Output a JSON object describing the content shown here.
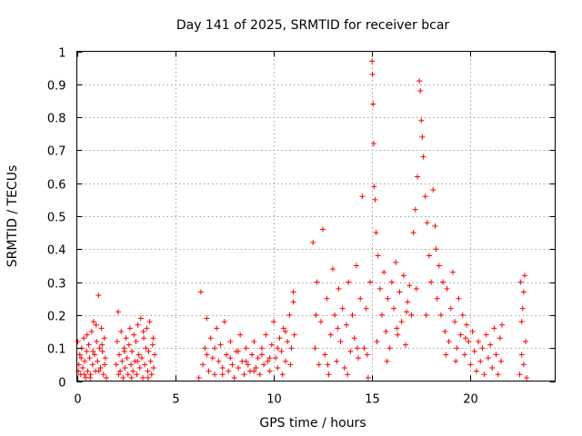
{
  "chart_data": {
    "type": "scatter",
    "title": "Day 141 of 2025, SRMTID for receiver bcar",
    "xlabel": "GPS time / hours",
    "ylabel": "SRMTID / TECUs",
    "xlim": [
      0,
      24.3
    ],
    "ylim": [
      0,
      1
    ],
    "xticks": [
      0,
      5,
      10,
      15,
      20
    ],
    "xtick_labels": [
      "0",
      "5",
      "10",
      "15",
      "20"
    ],
    "yticks": [
      0,
      0.1,
      0.2,
      0.3,
      0.4,
      0.5,
      0.6,
      0.7,
      0.8,
      0.9,
      1
    ],
    "ytick_labels": [
      "0",
      "0.1",
      "0.2",
      "0.3",
      "0.4",
      "0.5",
      "0.6",
      "0.7",
      "0.8",
      "0.9",
      "1"
    ],
    "grid": true,
    "marker": "+",
    "series_color": "#ff0000",
    "series": [
      {
        "name": "SRMTID",
        "points": [
          [
            0.05,
            0.12
          ],
          [
            0.1,
            0.05
          ],
          [
            0.15,
            0.08
          ],
          [
            0.2,
            0.02
          ],
          [
            0.25,
            0.1
          ],
          [
            0.3,
            0.04
          ],
          [
            0.35,
            0.13
          ],
          [
            0.4,
            0.06
          ],
          [
            0.45,
            0.01
          ],
          [
            0.5,
            0.09
          ],
          [
            0.55,
            0.03
          ],
          [
            0.6,
            0.11
          ],
          [
            0.65,
            0.07
          ],
          [
            0.7,
            0.02
          ],
          [
            0.75,
            0.15
          ],
          [
            0.8,
            0.05
          ],
          [
            0.85,
            0.18
          ],
          [
            0.9,
            0.08
          ],
          [
            0.95,
            0.03
          ],
          [
            1.0,
            0.12
          ],
          [
            1.05,
            0.06
          ],
          [
            1.1,
            0.26
          ],
          [
            1.15,
            0.1
          ],
          [
            1.2,
            0.04
          ],
          [
            1.25,
            0.16
          ],
          [
            1.3,
            0.09
          ],
          [
            1.35,
            0.02
          ],
          [
            1.4,
            0.13
          ],
          [
            1.45,
            0.07
          ],
          [
            1.5,
            0.01
          ],
          [
            0.08,
            0.03
          ],
          [
            0.22,
            0.07
          ],
          [
            0.38,
            0.02
          ],
          [
            0.52,
            0.14
          ],
          [
            0.68,
            0.01
          ],
          [
            0.82,
            0.09
          ],
          [
            0.98,
            0.17
          ],
          [
            1.12,
            0.03
          ],
          [
            1.28,
            0.11
          ],
          [
            1.42,
            0.05
          ],
          [
            2.0,
            0.05
          ],
          [
            2.05,
            0.12
          ],
          [
            2.1,
            0.21
          ],
          [
            2.15,
            0.08
          ],
          [
            2.2,
            0.03
          ],
          [
            2.25,
            0.15
          ],
          [
            2.3,
            0.06
          ],
          [
            2.35,
            0.01
          ],
          [
            2.4,
            0.1
          ],
          [
            2.45,
            0.04
          ],
          [
            2.5,
            0.13
          ],
          [
            2.55,
            0.07
          ],
          [
            2.6,
            0.02
          ],
          [
            2.65,
            0.11
          ],
          [
            2.7,
            0.16
          ],
          [
            2.75,
            0.05
          ],
          [
            2.8,
            0.09
          ],
          [
            2.85,
            0.03
          ],
          [
            2.9,
            0.14
          ],
          [
            2.95,
            0.06
          ],
          [
            3.0,
            0.12
          ],
          [
            3.05,
            0.02
          ],
          [
            3.1,
            0.17
          ],
          [
            3.15,
            0.08
          ],
          [
            3.2,
            0.04
          ],
          [
            3.25,
            0.19
          ],
          [
            3.3,
            0.07
          ],
          [
            3.35,
            0.01
          ],
          [
            3.4,
            0.13
          ],
          [
            3.45,
            0.05
          ],
          [
            3.5,
            0.1
          ],
          [
            3.55,
            0.16
          ],
          [
            3.6,
            0.03
          ],
          [
            3.65,
            0.09
          ],
          [
            3.7,
            0.18
          ],
          [
            3.75,
            0.06
          ],
          [
            3.8,
            0.02
          ],
          [
            3.85,
            0.11
          ],
          [
            3.9,
            0.04
          ],
          [
            3.95,
            0.08
          ],
          [
            2.12,
            0.02
          ],
          [
            2.42,
            0.09
          ],
          [
            2.78,
            0.01
          ],
          [
            3.08,
            0.06
          ],
          [
            3.38,
            0.15
          ],
          [
            3.62,
            0.01
          ],
          [
            3.88,
            0.13
          ],
          [
            6.2,
            0.01
          ],
          [
            6.3,
            0.27
          ],
          [
            6.4,
            0.05
          ],
          [
            6.5,
            0.1
          ],
          [
            6.6,
            0.19
          ],
          [
            6.7,
            0.03
          ],
          [
            6.8,
            0.13
          ],
          [
            6.9,
            0.07
          ],
          [
            7.0,
            0.02
          ],
          [
            7.1,
            0.16
          ],
          [
            7.2,
            0.06
          ],
          [
            7.3,
            0.11
          ],
          [
            7.4,
            0.04
          ],
          [
            7.5,
            0.18
          ],
          [
            7.6,
            0.08
          ],
          [
            7.7,
            0.03
          ],
          [
            7.8,
            0.12
          ],
          [
            7.9,
            0.05
          ],
          [
            8.0,
            0.01
          ],
          [
            8.1,
            0.09
          ],
          [
            8.2,
            0.04
          ],
          [
            8.3,
            0.14
          ],
          [
            8.4,
            0.06
          ],
          [
            8.5,
            0.02
          ],
          [
            8.6,
            0.1
          ],
          [
            8.7,
            0.05
          ],
          [
            8.8,
            0.03
          ],
          [
            8.9,
            0.08
          ],
          [
            9.0,
            0.12
          ],
          [
            9.1,
            0.04
          ],
          [
            9.2,
            0.07
          ],
          [
            9.3,
            0.02
          ],
          [
            9.4,
            0.1
          ],
          [
            9.5,
            0.05
          ],
          [
            9.6,
            0.14
          ],
          [
            9.7,
            0.06
          ],
          [
            9.8,
            0.03
          ],
          [
            9.9,
            0.11
          ],
          [
            10.0,
            0.18
          ],
          [
            10.1,
            0.07
          ],
          [
            10.2,
            0.04
          ],
          [
            10.3,
            0.13
          ],
          [
            10.4,
            0.09
          ],
          [
            10.5,
            0.16
          ],
          [
            10.6,
            0.06
          ],
          [
            10.7,
            0.12
          ],
          [
            10.8,
            0.2
          ],
          [
            10.9,
            0.1
          ],
          [
            11.0,
            0.24
          ],
          [
            11.05,
            0.14
          ],
          [
            6.6,
            0.08
          ],
          [
            7.0,
            0.1
          ],
          [
            7.4,
            0.02
          ],
          [
            7.8,
            0.07
          ],
          [
            8.2,
            0.09
          ],
          [
            8.6,
            0.06
          ],
          [
            9.0,
            0.03
          ],
          [
            9.4,
            0.08
          ],
          [
            9.8,
            0.07
          ],
          [
            10.2,
            0.1
          ],
          [
            10.6,
            0.15
          ],
          [
            11.0,
            0.27
          ],
          [
            10.85,
            0.05
          ],
          [
            10.45,
            0.02
          ],
          [
            12.0,
            0.42
          ],
          [
            12.1,
            0.1
          ],
          [
            12.2,
            0.3
          ],
          [
            12.3,
            0.05
          ],
          [
            12.4,
            0.18
          ],
          [
            12.5,
            0.46
          ],
          [
            12.6,
            0.08
          ],
          [
            12.7,
            0.25
          ],
          [
            12.8,
            0.02
          ],
          [
            12.9,
            0.14
          ],
          [
            13.0,
            0.34
          ],
          [
            13.1,
            0.2
          ],
          [
            13.2,
            0.06
          ],
          [
            13.3,
            0.28
          ],
          [
            13.4,
            0.12
          ],
          [
            13.5,
            0.22
          ],
          [
            13.6,
            0.04
          ],
          [
            13.7,
            0.17
          ],
          [
            13.8,
            0.3
          ],
          [
            13.9,
            0.09
          ],
          [
            14.0,
            0.2
          ],
          [
            14.1,
            0.13
          ],
          [
            14.2,
            0.35
          ],
          [
            14.3,
            0.07
          ],
          [
            14.4,
            0.25
          ],
          [
            14.5,
            0.56
          ],
          [
            14.6,
            0.1
          ],
          [
            14.7,
            0.22
          ],
          [
            14.8,
            0.01
          ],
          [
            14.9,
            0.3
          ],
          [
            15.0,
            0.97
          ],
          [
            15.02,
            0.93
          ],
          [
            15.05,
            0.84
          ],
          [
            15.08,
            0.72
          ],
          [
            15.1,
            0.59
          ],
          [
            15.15,
            0.55
          ],
          [
            15.2,
            0.45
          ],
          [
            15.3,
            0.38
          ],
          [
            15.4,
            0.28
          ],
          [
            15.5,
            0.2
          ],
          [
            15.6,
            0.33
          ],
          [
            15.7,
            0.15
          ],
          [
            15.8,
            0.25
          ],
          [
            15.9,
            0.1
          ],
          [
            16.0,
            0.3
          ],
          [
            16.1,
            0.22
          ],
          [
            16.2,
            0.36
          ],
          [
            16.3,
            0.14
          ],
          [
            16.4,
            0.27
          ],
          [
            16.5,
            0.18
          ],
          [
            16.6,
            0.32
          ],
          [
            16.7,
            0.11
          ],
          [
            16.8,
            0.24
          ],
          [
            16.9,
            0.29
          ],
          [
            17.0,
            0.2
          ],
          [
            17.1,
            0.45
          ],
          [
            17.2,
            0.52
          ],
          [
            17.3,
            0.62
          ],
          [
            17.4,
            0.91
          ],
          [
            17.45,
            0.88
          ],
          [
            17.5,
            0.79
          ],
          [
            17.55,
            0.74
          ],
          [
            17.6,
            0.68
          ],
          [
            17.7,
            0.56
          ],
          [
            17.8,
            0.48
          ],
          [
            17.9,
            0.38
          ],
          [
            18.0,
            0.3
          ],
          [
            18.1,
            0.58
          ],
          [
            18.2,
            0.47
          ],
          [
            18.3,
            0.25
          ],
          [
            18.4,
            0.35
          ],
          [
            18.5,
            0.2
          ],
          [
            18.6,
            0.3
          ],
          [
            18.7,
            0.15
          ],
          [
            18.8,
            0.28
          ],
          [
            18.9,
            0.12
          ],
          [
            19.0,
            0.22
          ],
          [
            19.1,
            0.33
          ],
          [
            19.2,
            0.18
          ],
          [
            19.3,
            0.1
          ],
          [
            19.4,
            0.25
          ],
          [
            19.5,
            0.14
          ],
          [
            19.6,
            0.2
          ],
          [
            19.7,
            0.08
          ],
          [
            19.8,
            0.17
          ],
          [
            19.9,
            0.12
          ],
          [
            20.0,
            0.05
          ],
          [
            20.1,
            0.15
          ],
          [
            20.2,
            0.09
          ],
          [
            20.3,
            0.03
          ],
          [
            20.4,
            0.12
          ],
          [
            20.5,
            0.06
          ],
          [
            20.6,
            0.1
          ],
          [
            20.7,
            0.02
          ],
          [
            20.8,
            0.14
          ],
          [
            20.9,
            0.07
          ],
          [
            21.0,
            0.11
          ],
          [
            21.1,
            0.04
          ],
          [
            21.2,
            0.16
          ],
          [
            21.3,
            0.08
          ],
          [
            21.4,
            0.02
          ],
          [
            21.5,
            0.13
          ],
          [
            21.55,
            0.06
          ],
          [
            21.6,
            0.17
          ],
          [
            12.15,
            0.2
          ],
          [
            12.75,
            0.05
          ],
          [
            13.25,
            0.16
          ],
          [
            13.75,
            0.02
          ],
          [
            14.25,
            0.1
          ],
          [
            14.75,
            0.08
          ],
          [
            15.25,
            0.12
          ],
          [
            15.75,
            0.06
          ],
          [
            16.25,
            0.16
          ],
          [
            16.75,
            0.21
          ],
          [
            17.25,
            0.28
          ],
          [
            17.75,
            0.2
          ],
          [
            18.25,
            0.4
          ],
          [
            18.75,
            0.08
          ],
          [
            19.25,
            0.06
          ],
          [
            19.75,
            0.13
          ],
          [
            22.5,
            0.02
          ],
          [
            22.55,
            0.3
          ],
          [
            22.6,
            0.08
          ],
          [
            22.65,
            0.22
          ],
          [
            22.7,
            0.05
          ],
          [
            22.75,
            0.32
          ],
          [
            22.8,
            0.12
          ],
          [
            22.85,
            0.01
          ],
          [
            22.6,
            0.18
          ],
          [
            22.7,
            0.27
          ]
        ]
      }
    ]
  }
}
